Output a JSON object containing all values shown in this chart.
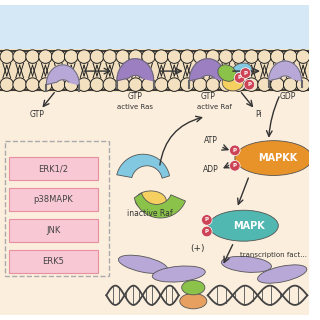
{
  "bg_top": "#d4e8f5",
  "bg_main": "#fbeedd",
  "colors": {
    "purple": "#9b7fc0",
    "purple_light": "#b8a8d8",
    "green": "#8bc34a",
    "yellow": "#f5d060",
    "blue_light": "#82c8e0",
    "orange": "#e8922a",
    "teal": "#50b8b0",
    "pink_box": "#f8c8d4",
    "pink_border": "#e890a0",
    "phospho": "#cc4455",
    "mem_fill": "#f2e0c0",
    "mem_line": "#222222"
  },
  "labels": {
    "GTP1": "GTP",
    "active_ras": "active Ras",
    "GTP2": "GTP",
    "active_raf": "active Raf",
    "GDP": "GDP",
    "Pi": "Pi",
    "inactive_raf": "inactive Raf",
    "ATP": "ATP",
    "ADP": "ADP",
    "MAPKK": "MAPKK",
    "MAPK": "MAPK",
    "plus": "(+)",
    "transcription": "transcription fact...",
    "ERK12": "ERK1/2",
    "p38MAPK": "p38MAPK",
    "JNK": "JNK",
    "ERK5": "ERK5"
  }
}
